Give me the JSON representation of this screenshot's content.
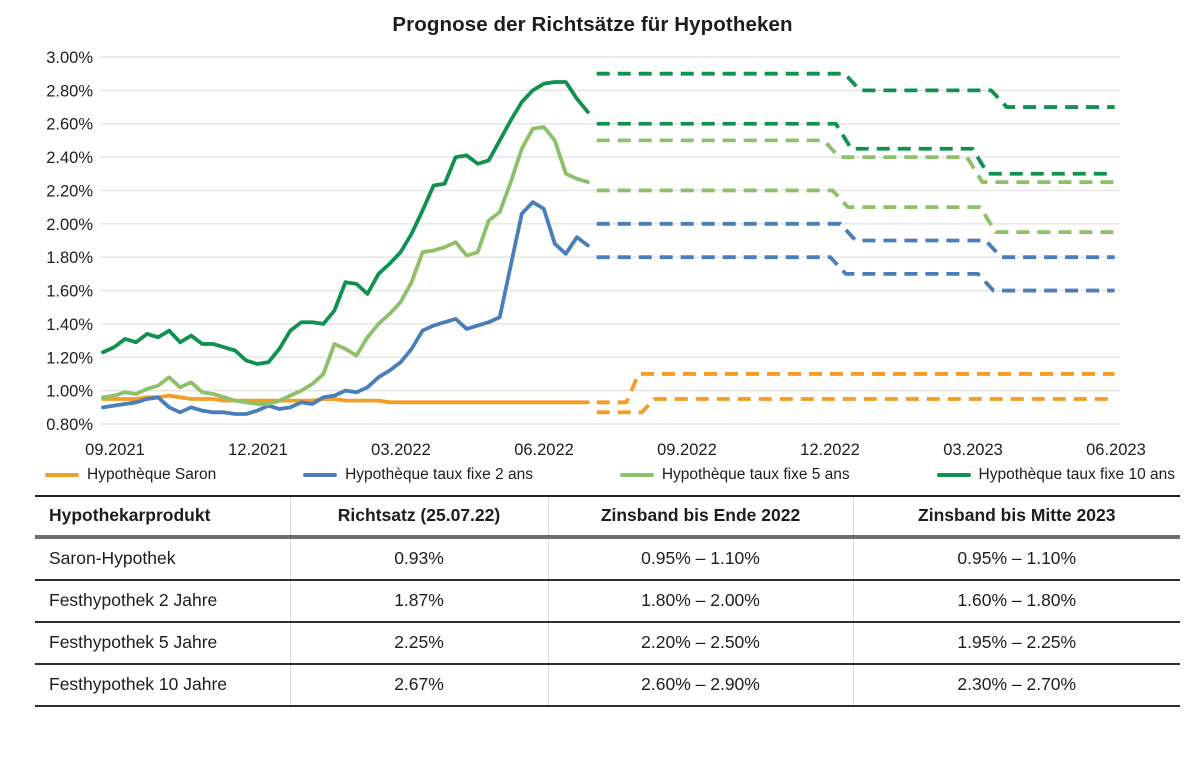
{
  "title": "Prognose der Richtsätze für Hypotheken",
  "colors": {
    "saron_orange": "#F59C24",
    "fix2_blue": "#4A7EBA",
    "fix5_lightgreen": "#8EC06A",
    "fix10_darkgreen": "#109150",
    "gridline": "#e4e4e4",
    "text": "#1d1d1b",
    "table_rule_dark": "#2e2e2e",
    "table_rule_thick": "#6d6d6d"
  },
  "chart_data": {
    "type": "line",
    "title": "Prognose der Richtsätze für Hypotheken",
    "ylim": [
      0.8,
      3.0
    ],
    "grid": true,
    "legend_position": "bottom",
    "y_ticks": [
      {
        "v": 3.0,
        "label": "3.00%"
      },
      {
        "v": 2.8,
        "label": "2.80%"
      },
      {
        "v": 2.6,
        "label": "2.60%"
      },
      {
        "v": 2.4,
        "label": "2.40%"
      },
      {
        "v": 2.2,
        "label": "2.20%"
      },
      {
        "v": 2.0,
        "label": "2.00%"
      },
      {
        "v": 1.8,
        "label": "1.80%"
      },
      {
        "v": 1.6,
        "label": "1.60%"
      },
      {
        "v": 1.4,
        "label": "1.40%"
      },
      {
        "v": 1.2,
        "label": "1.20%"
      },
      {
        "v": 1.0,
        "label": "1.00%"
      },
      {
        "v": 0.8,
        "label": "0.80%"
      }
    ],
    "x_ticks": [
      {
        "i": 1.09,
        "label": "09.2021"
      },
      {
        "i": 14.06,
        "label": "12.2021"
      },
      {
        "i": 27.04,
        "label": "03.2022"
      },
      {
        "i": 40.02,
        "label": "06.2022"
      },
      {
        "i": 52.99,
        "label": "09.2022"
      },
      {
        "i": 65.97,
        "label": "12.2022"
      },
      {
        "i": 78.95,
        "label": "03.2023"
      },
      {
        "i": 91.92,
        "label": "06.2023"
      }
    ],
    "series": [
      {
        "name": "Hypothèque Saron",
        "color": "#F59C24",
        "style": "solid",
        "values": [
          0.95,
          0.95,
          0.95,
          0.95,
          0.96,
          0.96,
          0.97,
          0.96,
          0.95,
          0.95,
          0.95,
          0.94,
          0.94,
          0.94,
          0.94,
          0.94,
          0.94,
          0.94,
          0.94,
          0.94,
          0.95,
          0.95,
          0.94,
          0.94,
          0.94,
          0.94,
          0.93,
          0.93,
          0.93,
          0.93,
          0.93,
          0.93,
          0.93,
          0.93,
          0.93,
          0.93,
          0.93,
          0.93,
          0.93,
          0.93,
          0.93,
          0.93,
          0.93,
          0.93,
          0.93
        ]
      },
      {
        "name": "Hypothèque taux fixe 2 ans",
        "color": "#4A7EBA",
        "style": "solid",
        "values": [
          0.9,
          0.91,
          0.92,
          0.93,
          0.95,
          0.96,
          0.9,
          0.87,
          0.9,
          0.88,
          0.87,
          0.87,
          0.86,
          0.86,
          0.88,
          0.91,
          0.89,
          0.9,
          0.93,
          0.92,
          0.96,
          0.97,
          1.0,
          0.99,
          1.02,
          1.08,
          1.12,
          1.17,
          1.25,
          1.36,
          1.39,
          1.41,
          1.43,
          1.37,
          1.39,
          1.41,
          1.44,
          1.75,
          2.06,
          2.13,
          2.09,
          1.88,
          1.82,
          1.92,
          1.87
        ]
      },
      {
        "name": "Hypothèque taux fixe 5 ans",
        "color": "#8EC06A",
        "style": "solid",
        "values": [
          0.96,
          0.97,
          0.99,
          0.98,
          1.01,
          1.03,
          1.08,
          1.02,
          1.05,
          0.99,
          0.98,
          0.96,
          0.94,
          0.93,
          0.92,
          0.92,
          0.94,
          0.97,
          1.0,
          1.04,
          1.1,
          1.28,
          1.25,
          1.21,
          1.32,
          1.4,
          1.46,
          1.53,
          1.65,
          1.83,
          1.84,
          1.86,
          1.89,
          1.81,
          1.83,
          2.02,
          2.07,
          2.25,
          2.45,
          2.57,
          2.58,
          2.5,
          2.3,
          2.27,
          2.25
        ]
      },
      {
        "name": "Hypothèque taux fixe 10 ans",
        "color": "#109150",
        "style": "solid",
        "values": [
          1.23,
          1.26,
          1.31,
          1.29,
          1.34,
          1.32,
          1.36,
          1.29,
          1.33,
          1.28,
          1.28,
          1.26,
          1.24,
          1.18,
          1.16,
          1.17,
          1.25,
          1.36,
          1.41,
          1.41,
          1.4,
          1.48,
          1.65,
          1.64,
          1.58,
          1.7,
          1.76,
          1.83,
          1.94,
          2.08,
          2.23,
          2.24,
          2.4,
          2.41,
          2.36,
          2.38,
          2.5,
          2.62,
          2.73,
          2.8,
          2.84,
          2.85,
          2.85,
          2.75,
          2.67
        ]
      }
    ],
    "forecast_bands": [
      {
        "series": "Hypothèque Saron",
        "role": "upper",
        "color": "#F59C24",
        "points": [
          [
            44.8,
            0.93
          ],
          [
            47.5,
            0.93
          ],
          [
            48.6,
            1.1
          ],
          [
            91.8,
            1.1
          ]
        ]
      },
      {
        "series": "Hypothèque Saron",
        "role": "lower",
        "color": "#F59C24",
        "points": [
          [
            44.8,
            0.87
          ],
          [
            48.9,
            0.87
          ],
          [
            50.0,
            0.95
          ],
          [
            91.8,
            0.95
          ]
        ]
      },
      {
        "series": "Hypothèque taux fixe 2 ans",
        "role": "upper",
        "color": "#4A7EBA",
        "points": [
          [
            44.8,
            2.0
          ],
          [
            66.9,
            2.0
          ],
          [
            68.3,
            1.9
          ],
          [
            80.1,
            1.9
          ],
          [
            81.5,
            1.8
          ],
          [
            91.8,
            1.8
          ]
        ]
      },
      {
        "series": "Hypothèque taux fixe 2 ans",
        "role": "lower",
        "color": "#4A7EBA",
        "points": [
          [
            44.8,
            1.8
          ],
          [
            66.0,
            1.8
          ],
          [
            67.4,
            1.7
          ],
          [
            79.4,
            1.7
          ],
          [
            80.8,
            1.6
          ],
          [
            91.8,
            1.6
          ]
        ]
      },
      {
        "series": "Hypothèque taux fixe 5 ans",
        "role": "upper",
        "color": "#8EC06A",
        "points": [
          [
            44.8,
            2.5
          ],
          [
            65.4,
            2.5
          ],
          [
            66.8,
            2.4
          ],
          [
            78.4,
            2.4
          ],
          [
            79.8,
            2.25
          ],
          [
            91.8,
            2.25
          ]
        ]
      },
      {
        "series": "Hypothèque taux fixe 5 ans",
        "role": "lower",
        "color": "#8EC06A",
        "points": [
          [
            44.8,
            2.2
          ],
          [
            66.2,
            2.2
          ],
          [
            67.6,
            2.1
          ],
          [
            79.6,
            2.1
          ],
          [
            81.0,
            1.95
          ],
          [
            91.8,
            1.95
          ]
        ]
      },
      {
        "series": "Hypothèque taux fixe 10 ans",
        "role": "upper",
        "color": "#109150",
        "points": [
          [
            44.8,
            2.9
          ],
          [
            67.3,
            2.9
          ],
          [
            68.7,
            2.8
          ],
          [
            80.6,
            2.8
          ],
          [
            82.0,
            2.7
          ],
          [
            91.8,
            2.7
          ]
        ]
      },
      {
        "series": "Hypothèque taux fixe 10 ans",
        "role": "lower",
        "color": "#109150",
        "points": [
          [
            44.8,
            2.6
          ],
          [
            66.5,
            2.6
          ],
          [
            67.9,
            2.45
          ],
          [
            78.9,
            2.45
          ],
          [
            80.3,
            2.3
          ],
          [
            91.8,
            2.3
          ]
        ]
      }
    ]
  },
  "legend": {
    "items": [
      {
        "label": "Hypothèque Saron",
        "color": "#F59C24"
      },
      {
        "label": "Hypothèque taux fixe 2 ans",
        "color": "#4A7EBA"
      },
      {
        "label": "Hypothèque taux fixe 5 ans",
        "color": "#8EC06A"
      },
      {
        "label": "Hypothèque taux fixe 10 ans",
        "color": "#109150"
      }
    ]
  },
  "table": {
    "headers": [
      "Hypothekarprodukt",
      "Richtsatz (25.07.22)",
      "Zinsband bis Ende 2022",
      "Zinsband bis Mitte 2023"
    ],
    "rows": [
      [
        "Saron-Hypothek",
        "0.93%",
        "0.95% – 1.10%",
        "0.95% – 1.10%"
      ],
      [
        "Festhypothek 2 Jahre",
        "1.87%",
        "1.80% – 2.00%",
        "1.60% – 1.80%"
      ],
      [
        "Festhypothek 5 Jahre",
        "2.25%",
        "2.20% – 2.50%",
        "1.95% – 2.25%"
      ],
      [
        "Festhypothek 10 Jahre",
        "2.67%",
        "2.60% – 2.90%",
        "2.30% – 2.70%"
      ]
    ]
  }
}
